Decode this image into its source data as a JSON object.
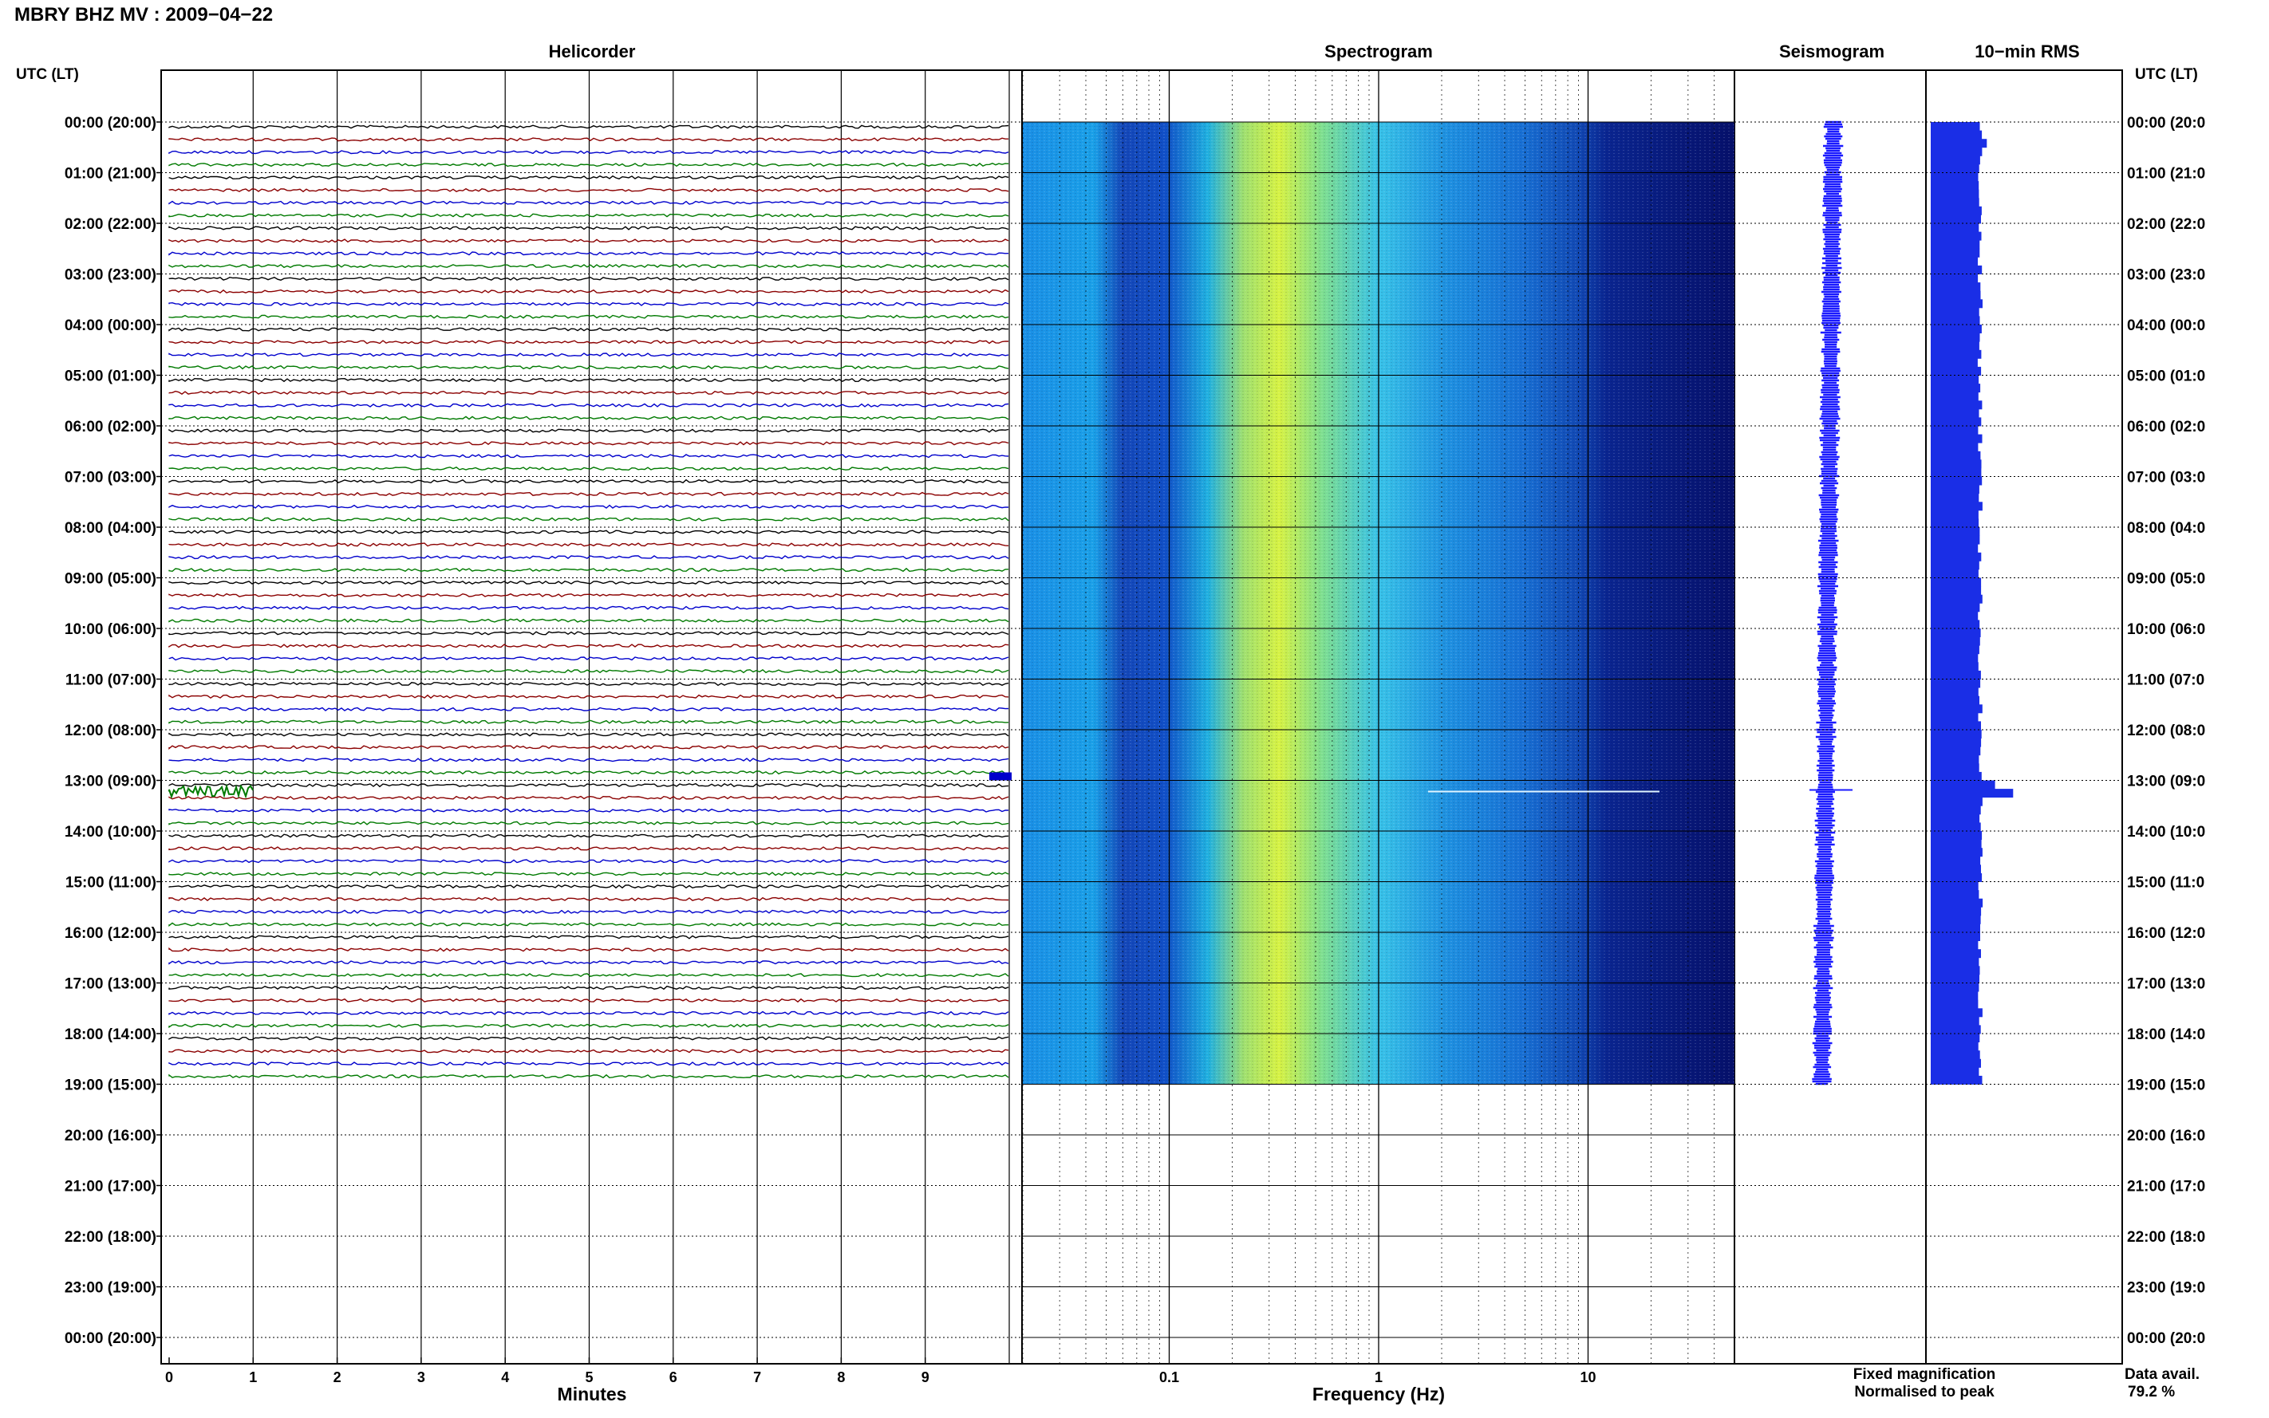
{
  "header": {
    "title": "MBRY BHZ MV : 2009−04−22",
    "utc_label_left": "UTC (LT)",
    "utc_label_right": "UTC (LT)"
  },
  "panels": {
    "helicorder": "Helicorder",
    "spectrogram": "Spectrogram",
    "seismogram": "Seismogram",
    "rms": "10−min RMS"
  },
  "time_labels": [
    "00:00 (20:00)",
    "01:00 (21:00)",
    "02:00 (22:00)",
    "03:00 (23:00)",
    "04:00 (00:00)",
    "05:00 (01:00)",
    "06:00 (02:00)",
    "07:00 (03:00)",
    "08:00 (04:00)",
    "09:00 (05:00)",
    "10:00 (06:00)",
    "11:00 (07:00)",
    "12:00 (08:00)",
    "13:00 (09:00)",
    "14:00 (10:00)",
    "15:00 (11:00)",
    "16:00 (12:00)",
    "17:00 (13:00)",
    "18:00 (14:00)",
    "19:00 (15:00)",
    "20:00 (16:00)",
    "21:00 (17:00)",
    "22:00 (18:00)",
    "23:00 (19:00)",
    "00:00 (20:00)"
  ],
  "time_labels_right": [
    "00:00 (20:0",
    "01:00 (21:0",
    "02:00 (22:0",
    "03:00 (23:0",
    "04:00 (00:0",
    "05:00 (01:0",
    "06:00 (02:0",
    "07:00 (03:0",
    "08:00 (04:0",
    "09:00 (05:0",
    "10:00 (06:0",
    "11:00 (07:0",
    "12:00 (08:0",
    "13:00 (09:0",
    "14:00 (10:0",
    "15:00 (11:0",
    "16:00 (12:0",
    "17:00 (13:0",
    "18:00 (14:0",
    "19:00 (15:0",
    "20:00 (16:0",
    "21:00 (17:0",
    "22:00 (18:0",
    "23:00 (19:0",
    "00:00 (20:0"
  ],
  "helicorder": {
    "xlabel": "Minutes",
    "x_ticks": [
      "0",
      "1",
      "2",
      "3",
      "4",
      "5",
      "6",
      "7",
      "8",
      "9"
    ],
    "trace_colors": [
      "#000000",
      "#8b0000",
      "#0000cc",
      "#007a00"
    ],
    "data_hours": 19
  },
  "spectrogram": {
    "xlabel": "Frequency (Hz)",
    "x_ticks": [
      "0.1",
      "1",
      "10"
    ],
    "scale": "log",
    "xlim": [
      0.02,
      50
    ]
  },
  "legend": {
    "fixed": "Fixed magnification",
    "normalised": "Normalised to peak",
    "fixed_color": "#0000ff",
    "normalised_color": "#ff0000"
  },
  "data_availability": {
    "label": "Data avail.",
    "value": "79.2 %"
  },
  "chart_data": [
    {
      "type": "line",
      "title": "Helicorder",
      "xlabel": "Minutes",
      "xlim": [
        0,
        10
      ],
      "ylim_hours": [
        0,
        24
      ],
      "note_event_hour": 13
    },
    {
      "type": "heatmap",
      "title": "Spectrogram",
      "xlabel": "Frequency (Hz)",
      "xscale": "log",
      "xlim": [
        0.02,
        50
      ],
      "peak_band_hz": [
        0.25,
        0.5
      ],
      "ylim_hours": [
        0,
        19
      ]
    },
    {
      "type": "bar",
      "title": "10−min RMS",
      "orientation": "horizontal",
      "interval_minutes": 10,
      "intervals": 114,
      "baseline_level": 0.6,
      "peak_hour": 13,
      "peak_level": 1.0
    }
  ]
}
